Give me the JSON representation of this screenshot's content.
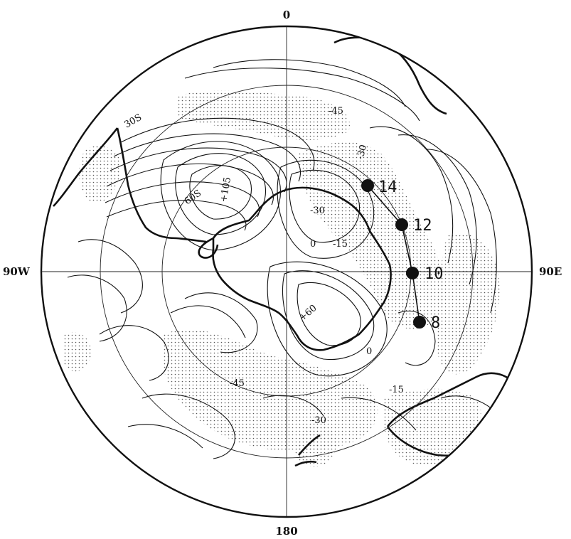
{
  "edge_labels": {
    "top": "0",
    "bottom": "180",
    "left": "90W",
    "right": "90E"
  },
  "latitude_labels": [
    "30S",
    "60S"
  ],
  "contour_labels": [
    "-45",
    "-30",
    "+105",
    "-30",
    "0",
    "-15",
    "+60",
    "-45",
    "-30",
    "0",
    "-15"
  ],
  "track_points": [
    {
      "label": "14"
    },
    {
      "label": "12"
    },
    {
      "label": "10"
    },
    {
      "label": "8"
    }
  ],
  "colors": {
    "ink": "#111111",
    "stipple": "#555555",
    "background": "#ffffff"
  }
}
